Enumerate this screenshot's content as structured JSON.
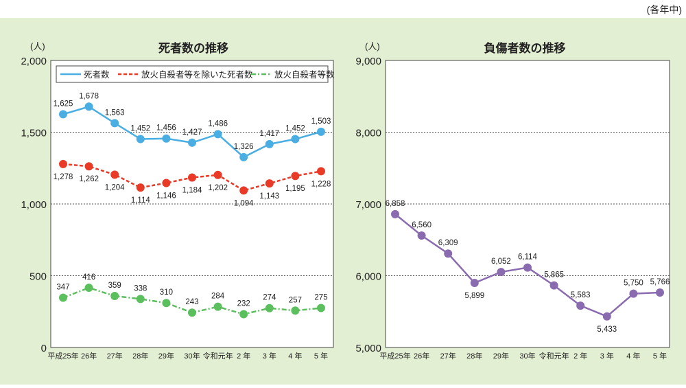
{
  "note": "(各年中)",
  "chart_data": [
    {
      "type": "line",
      "title": "死者数の推移",
      "unit": "(人)",
      "x": [
        "平成25年",
        "26年",
        "27年",
        "28年",
        "29年",
        "30年",
        "令和元年",
        "2 年",
        "3 年",
        "4 年",
        "5 年"
      ],
      "ylim": [
        0,
        2000
      ],
      "yticks": [
        0,
        500,
        1000,
        1500,
        2000
      ],
      "ytick_labels": [
        "0",
        "500",
        "1,000",
        "1,500",
        "2,000"
      ],
      "grid": "horizontal-dotted",
      "legend": "top",
      "series": [
        {
          "name": "死者数",
          "color": "#4aaee3",
          "dash": "solid",
          "values": [
            1625,
            1678,
            1563,
            1452,
            1456,
            1427,
            1486,
            1326,
            1417,
            1452,
            1503
          ],
          "labels": [
            "1,625",
            "1,678",
            "1,563",
            "1,452",
            "1,456",
            "1,427",
            "1,486",
            "1,326",
            "1,417",
            "1,452",
            "1,503"
          ],
          "label_pos": [
            "above",
            "above",
            "above",
            "above",
            "above",
            "above",
            "above",
            "above",
            "above",
            "above",
            "above"
          ]
        },
        {
          "name": "放火自殺者等を除いた死者数",
          "color": "#e83a26",
          "dash": "dashed",
          "values": [
            1278,
            1262,
            1204,
            1114,
            1146,
            1184,
            1202,
            1094,
            1143,
            1195,
            1228
          ],
          "labels": [
            "1,278",
            "1,262",
            "1,204",
            "1,114",
            "1,146",
            "1,184",
            "1,202",
            "1,094",
            "1,143",
            "1,195",
            "1,228"
          ],
          "label_pos": [
            "below",
            "below",
            "below",
            "below",
            "below",
            "below",
            "below",
            "below",
            "below",
            "below",
            "below"
          ]
        },
        {
          "name": "放火自殺者等数",
          "color": "#5bbf5d",
          "dash": "dashdot",
          "values": [
            347,
            416,
            359,
            338,
            310,
            243,
            284,
            232,
            274,
            257,
            275
          ],
          "labels": [
            "347",
            "416",
            "359",
            "338",
            "310",
            "243",
            "284",
            "232",
            "274",
            "257",
            "275"
          ],
          "label_pos": [
            "above",
            "above",
            "above",
            "above",
            "above",
            "above",
            "above",
            "above",
            "above",
            "above",
            "above"
          ]
        }
      ]
    },
    {
      "type": "line",
      "title": "負傷者数の推移",
      "unit": "(人)",
      "x": [
        "平成25年",
        "26年",
        "27年",
        "28年",
        "29年",
        "30年",
        "令和元年",
        "2 年",
        "3 年",
        "4 年",
        "5 年"
      ],
      "ylim": [
        5000,
        9000
      ],
      "yticks": [
        5000,
        6000,
        7000,
        8000,
        9000
      ],
      "ytick_labels": [
        "5,000",
        "6,000",
        "7,000",
        "8,000",
        "9,000"
      ],
      "grid": "horizontal-dotted",
      "series": [
        {
          "color": "#8a6bb0",
          "dash": "solid",
          "values": [
            6858,
            6560,
            6309,
            5899,
            6052,
            6114,
            5865,
            5583,
            5433,
            5750,
            5766
          ],
          "labels": [
            "6,858",
            "6,560",
            "6,309",
            "5,899",
            "6,052",
            "6,114",
            "5,865",
            "5,583",
            "5,433",
            "5,750",
            "5,766"
          ],
          "label_pos": [
            "above",
            "above",
            "above",
            "below",
            "above",
            "above",
            "above",
            "above",
            "below",
            "above",
            "above"
          ]
        }
      ]
    }
  ]
}
